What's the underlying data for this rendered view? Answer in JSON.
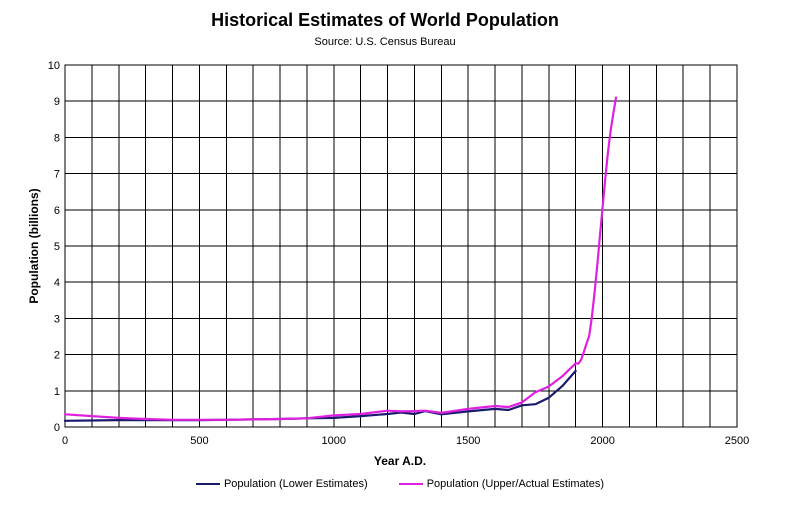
{
  "chart_data": {
    "type": "line",
    "title": "Historical Estimates of World Population",
    "subtitle": "Source: U.S. Census Bureau",
    "xlabel": "Year A.D.",
    "ylabel": "Population (billions)",
    "xlim": [
      0,
      2500
    ],
    "ylim": [
      0,
      10
    ],
    "xticks": [
      0,
      500,
      1000,
      1500,
      2000,
      2500
    ],
    "yticks": [
      0,
      1,
      2,
      3,
      4,
      5,
      6,
      7,
      8,
      9,
      10
    ],
    "grid": true,
    "legend_position": "bottom",
    "series": [
      {
        "name": "Population (Lower Estimates)",
        "color": "#1a1a6e",
        "x": [
          0,
          200,
          400,
          500,
          600,
          700,
          800,
          900,
          1000,
          1100,
          1200,
          1250,
          1300,
          1340,
          1400,
          1500,
          1600,
          1650,
          1700,
          1750,
          1800,
          1850,
          1900
        ],
        "y": [
          0.17,
          0.19,
          0.19,
          0.19,
          0.2,
          0.21,
          0.22,
          0.24,
          0.25,
          0.3,
          0.36,
          0.4,
          0.36,
          0.44,
          0.35,
          0.43,
          0.5,
          0.47,
          0.6,
          0.63,
          0.81,
          1.13,
          1.55
        ]
      },
      {
        "name": "Population (Upper/Actual Estimates)",
        "color": "#e020e0",
        "x": [
          0,
          100,
          200,
          300,
          400,
          500,
          600,
          700,
          800,
          900,
          1000,
          1100,
          1200,
          1250,
          1300,
          1340,
          1400,
          1500,
          1600,
          1650,
          1700,
          1750,
          1800,
          1850,
          1900,
          1910,
          1920,
          1930,
          1940,
          1950,
          1960,
          1970,
          1980,
          1990,
          2000,
          2010,
          2020,
          2030,
          2040,
          2050
        ],
        "y": [
          0.35,
          0.3,
          0.25,
          0.22,
          0.2,
          0.2,
          0.2,
          0.21,
          0.22,
          0.24,
          0.32,
          0.36,
          0.45,
          0.43,
          0.44,
          0.45,
          0.39,
          0.5,
          0.58,
          0.55,
          0.68,
          0.96,
          1.12,
          1.4,
          1.76,
          1.75,
          1.86,
          2.07,
          2.3,
          2.52,
          3.02,
          3.7,
          4.44,
          5.27,
          6.07,
          6.87,
          7.6,
          8.2,
          8.67,
          9.1
        ]
      }
    ]
  }
}
